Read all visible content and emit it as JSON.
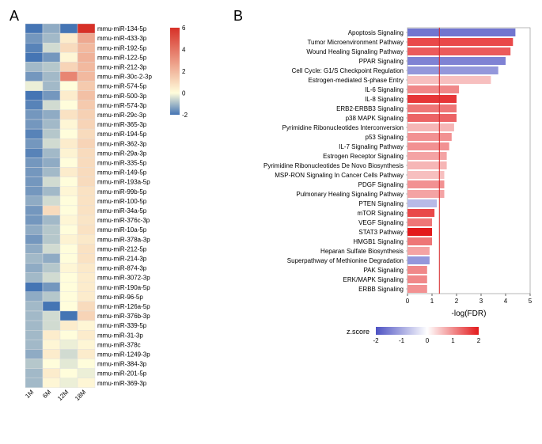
{
  "panelA": {
    "label": "A",
    "type": "heatmap",
    "columns": [
      "1M",
      "6M",
      "12M",
      "18M"
    ],
    "rows": [
      "mmu-miR-134-5p",
      "mmu-miR-433-3p",
      "mmu-miR-192-5p",
      "mmu-miR-122-5p",
      "mmu-miR-212-3p",
      "mmu-miR-30c-2-3p",
      "mmu-miR-574-5p",
      "mmu-miR-500-3p",
      "mmu-miR-574-3p",
      "mmu-miR-29c-3p",
      "mmu-miR-365-3p",
      "mmu-miR-194-5p",
      "mmu-miR-362-3p",
      "mmu-miR-29a-3p",
      "mmu-miR-335-5p",
      "mmu-miR-149-5p",
      "mmu-miR-193a-5p",
      "mmu-miR-99b-5p",
      "mmu-miR-100-5p",
      "mmu-miR-34a-5p",
      "mmu-miR-376c-3p",
      "mmu-miR-10a-5p",
      "mmu-miR-378a-3p",
      "mmu-miR-212-5p",
      "mmu-miR-214-3p",
      "mmu-miR-874-3p",
      "mmu-miR-3072-3p",
      "mmu-miR-190a-5p",
      "mmu-miR-96-5p",
      "mmu-miR-126a-5p",
      "mmu-miR-376b-3p",
      "mmu-miR-339-5p",
      "mmu-miR-31-3p",
      "mmu-miR-378c",
      "mmu-miR-1249-3p",
      "mmu-miR-384-3p",
      "mmu-miR-201-5p",
      "mmu-miR-369-3p"
    ],
    "values": [
      [
        -2.0,
        -1.2,
        -2.8,
        7.0
      ],
      [
        -1.5,
        -1.0,
        0.5,
        2.5
      ],
      [
        -1.8,
        -0.5,
        1.0,
        2.0
      ],
      [
        -2.2,
        -1.5,
        0.2,
        2.2
      ],
      [
        -1.0,
        -0.8,
        1.2,
        2.0
      ],
      [
        -1.5,
        -1.0,
        3.5,
        2.0
      ],
      [
        -0.2,
        -1.0,
        0.0,
        1.5
      ],
      [
        -2.0,
        -1.5,
        0.5,
        1.8
      ],
      [
        -1.8,
        -0.5,
        0.0,
        1.5
      ],
      [
        -1.5,
        -1.2,
        0.8,
        1.3
      ],
      [
        -1.5,
        -1.0,
        0.2,
        1.2
      ],
      [
        -1.8,
        -0.8,
        0.0,
        1.0
      ],
      [
        -1.5,
        -0.5,
        0.5,
        1.2
      ],
      [
        -1.8,
        -1.0,
        0.3,
        1.0
      ],
      [
        -1.5,
        -1.2,
        0.0,
        1.0
      ],
      [
        -1.5,
        -1.0,
        0.5,
        1.0
      ],
      [
        -1.5,
        -0.5,
        0.0,
        1.0
      ],
      [
        -1.5,
        -1.0,
        0.2,
        0.8
      ],
      [
        -1.2,
        -0.5,
        0.0,
        0.8
      ],
      [
        -1.5,
        1.0,
        0.0,
        0.8
      ],
      [
        -1.5,
        -1.0,
        0.2,
        0.7
      ],
      [
        -1.2,
        -0.8,
        0.0,
        0.8
      ],
      [
        -1.5,
        -0.8,
        0.3,
        0.6
      ],
      [
        -1.2,
        -0.5,
        0.0,
        0.8
      ],
      [
        -1.0,
        -1.2,
        0.0,
        0.8
      ],
      [
        -1.2,
        -0.8,
        0.2,
        0.6
      ],
      [
        -1.0,
        -0.5,
        0.0,
        0.5
      ],
      [
        -2.0,
        -1.5,
        0.0,
        0.5
      ],
      [
        -1.2,
        -0.8,
        0.0,
        0.5
      ],
      [
        -1.0,
        -2.5,
        0.0,
        1.0
      ],
      [
        -1.0,
        -0.5,
        -3.0,
        1.2
      ],
      [
        -1.0,
        -0.5,
        0.5,
        0.2
      ],
      [
        -1.0,
        0.5,
        0.0,
        0.5
      ],
      [
        -1.0,
        0.2,
        -0.2,
        0.2
      ],
      [
        -1.2,
        0.5,
        -0.5,
        0.5
      ],
      [
        -0.8,
        0.0,
        -0.3,
        0.0
      ],
      [
        -1.0,
        0.5,
        0.0,
        -0.2
      ],
      [
        -1.0,
        0.2,
        -0.2,
        0.2
      ]
    ],
    "colorscale": {
      "ticks": [
        -2,
        0,
        2,
        4,
        6
      ],
      "colors": {
        "min": "#4575b4",
        "mid": "#fffddb",
        "max": "#d73027"
      }
    },
    "cell_border": "#e0e0e0",
    "background": "#ffffff",
    "col_label_rotation": -45
  },
  "panelB": {
    "label": "B",
    "type": "barh",
    "xlabel": "-log(FDR)",
    "xlim": [
      0,
      5
    ],
    "xticks": [
      0,
      1,
      2,
      3,
      4,
      5
    ],
    "threshold_line": {
      "x": 1.3,
      "color": "#d62728"
    },
    "zscore_colorscale": {
      "label": "z.score",
      "ticks": [
        -2,
        -1,
        0,
        1,
        2
      ],
      "colors": {
        "min": "#4d52c3",
        "mid": "#ffffff",
        "max": "#e31a1c"
      }
    },
    "bars": [
      {
        "label": "Apoptosis Signaling",
        "value": 4.4,
        "z": -2.0
      },
      {
        "label": "Tumor Microenvironment Pathway",
        "value": 4.3,
        "z": 2.0
      },
      {
        "label": "Wound Healing Signaling Pathway",
        "value": 4.2,
        "z": 1.8
      },
      {
        "label": "PPAR Signaling",
        "value": 4.0,
        "z": -1.8
      },
      {
        "label": "Cell Cycle: G1/S Checkpoint Regulation",
        "value": 3.7,
        "z": -1.5
      },
      {
        "label": "Estrogen-mediated S-phase Entry",
        "value": 3.4,
        "z": 0.7
      },
      {
        "label": "IL-6 Signaling",
        "value": 2.1,
        "z": 1.3
      },
      {
        "label": "IL-8 Signaling",
        "value": 2.0,
        "z": 2.2
      },
      {
        "label": "ERB2-ERBB3 Signaling",
        "value": 2.0,
        "z": 1.5
      },
      {
        "label": "p38 MAPK Signaling",
        "value": 2.0,
        "z": 1.7
      },
      {
        "label": "Pyrimidine Ribonucleotides Interconversion",
        "value": 1.9,
        "z": 0.8
      },
      {
        "label": "p53 Signaling",
        "value": 1.8,
        "z": 1.2
      },
      {
        "label": "IL-7 Signaling Pathway",
        "value": 1.7,
        "z": 1.2
      },
      {
        "label": "Estrogen Receptor Signaling",
        "value": 1.6,
        "z": 1.0
      },
      {
        "label": "Pyrimidine Ribonucleotides De Novo Biosynthesis",
        "value": 1.6,
        "z": 0.8
      },
      {
        "label": "MSP-RON Signaling In Cancer Cells Pathway",
        "value": 1.5,
        "z": 0.7
      },
      {
        "label": "PDGF Signaling",
        "value": 1.5,
        "z": 1.2
      },
      {
        "label": "Pulmonary Healing Signaling Pathway",
        "value": 1.5,
        "z": 1.0
      },
      {
        "label": "PTEN Signaling",
        "value": 1.2,
        "z": -1.0
      },
      {
        "label": "mTOR Signaling",
        "value": 1.1,
        "z": 2.0
      },
      {
        "label": "VEGF Signaling",
        "value": 1.0,
        "z": 1.5
      },
      {
        "label": "STAT3 Pathway",
        "value": 1.0,
        "z": 2.5
      },
      {
        "label": "HMGB1 Signaling",
        "value": 1.0,
        "z": 1.5
      },
      {
        "label": "Heparan Sulfate Biosynthesis",
        "value": 0.9,
        "z": 1.0
      },
      {
        "label": "Superpathway of Methionine Degradation",
        "value": 0.9,
        "z": -1.5
      },
      {
        "label": "PAK Signaling",
        "value": 0.8,
        "z": 1.3
      },
      {
        "label": "ERK/MAPK Signaling",
        "value": 0.8,
        "z": 1.3
      },
      {
        "label": "ERBB Signaling",
        "value": 0.8,
        "z": 1.2
      }
    ]
  }
}
